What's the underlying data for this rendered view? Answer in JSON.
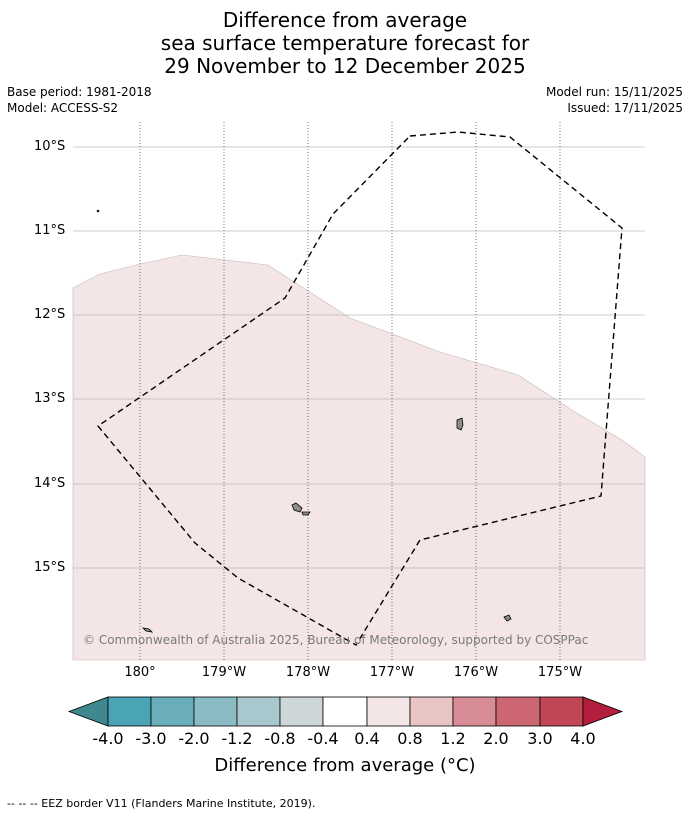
{
  "title": {
    "line1": "Difference from average",
    "line2": "sea surface temperature forecast for",
    "line3": "29 November to 12 December 2025"
  },
  "meta": {
    "base_period": "Base period: 1981-2018",
    "model": "Model: ACCESS-S2",
    "model_run": "Model run: 15/11/2025",
    "issued": "Issued: 17/11/2025"
  },
  "map": {
    "lat_labels": [
      "10°S",
      "11°S",
      "12°S",
      "13°S",
      "14°S",
      "15°S"
    ],
    "lon_labels": [
      "180°",
      "179°W",
      "178°W",
      "177°W",
      "176°W",
      "175°W"
    ],
    "copyright": "© Commonwealth of Australia 2025, Bureau of Meteorology, supported by COSPPac",
    "colors": {
      "anomaly_fill": "#f4e6e6",
      "gridline": "#bbbbbb",
      "land": "#8c8c8c",
      "eez_line": "#000000"
    }
  },
  "colorbar": {
    "ticks": [
      "-4.0",
      "-3.0",
      "-2.0",
      "-1.2",
      "-0.8",
      "-0.4",
      "0.4",
      "0.8",
      "1.2",
      "2.0",
      "3.0",
      "4.0"
    ],
    "colors": [
      "#3f8890",
      "#4aa4b6",
      "#69aeba",
      "#8bbcc6",
      "#a9c8ce",
      "#cdd7d9",
      "#ffffff",
      "#f4e6e6",
      "#e8c4c4",
      "#d88c95",
      "#cc6673",
      "#c24756",
      "#b21e3c"
    ],
    "label": "Difference from average (°C)"
  },
  "footer": {
    "legend_text": "--  --  -- EEZ border V11 (Flanders Marine Institute, 2019)."
  }
}
